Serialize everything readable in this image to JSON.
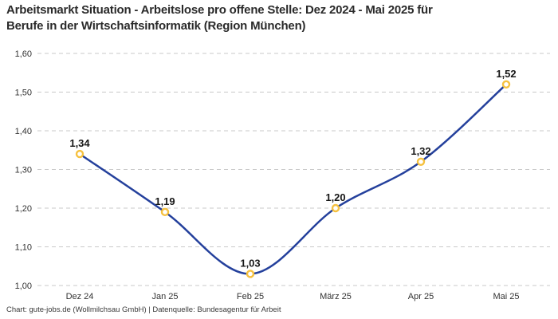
{
  "title": "Arbeitsmarkt Situation - Arbeitslose pro offene Stelle: Dez 2024 - Mai 2025 für\nBerufe in der Wirtschaftsinformatik (Region München)",
  "footer": "Chart: gute-jobs.de (Wollmilchsau GmbH) | Datenquelle: Bundesagentur für Arbeit",
  "chart_data": {
    "type": "line",
    "title": "Arbeitsmarkt Situation - Arbeitslose pro offene Stelle: Dez 2024 - Mai 2025 für Berufe in der Wirtschaftsinformatik (Region München)",
    "categories": [
      "Dez 24",
      "Jan 25",
      "Feb 25",
      "März 25",
      "Apr 25",
      "Mai 25"
    ],
    "values": [
      1.34,
      1.19,
      1.03,
      1.2,
      1.32,
      1.52
    ],
    "point_labels": [
      "1,34",
      "1,19",
      "1,03",
      "1,20",
      "1,32",
      "1,52"
    ],
    "y_tick_values": [
      1.6,
      1.5,
      1.4,
      1.3,
      1.2,
      1.1,
      1.0
    ],
    "y_tick_labels": [
      "1,60",
      "1,50",
      "1,40",
      "1,30",
      "1,20",
      "1,10",
      "1,00"
    ],
    "ylim": [
      1.0,
      1.6
    ],
    "xlabel": "",
    "ylabel": "",
    "legend": "none",
    "grid": "horizontal-dashed",
    "curve": "smooth",
    "colors": {
      "line": "#24409c",
      "marker_stroke": "#f6c13f",
      "marker_fill": "#ffffff",
      "grid": "#c9c9c9",
      "tick_text": "#333333",
      "point_label_text": "#161616",
      "title_text": "#2a2a2a",
      "background": "#ffffff"
    }
  }
}
